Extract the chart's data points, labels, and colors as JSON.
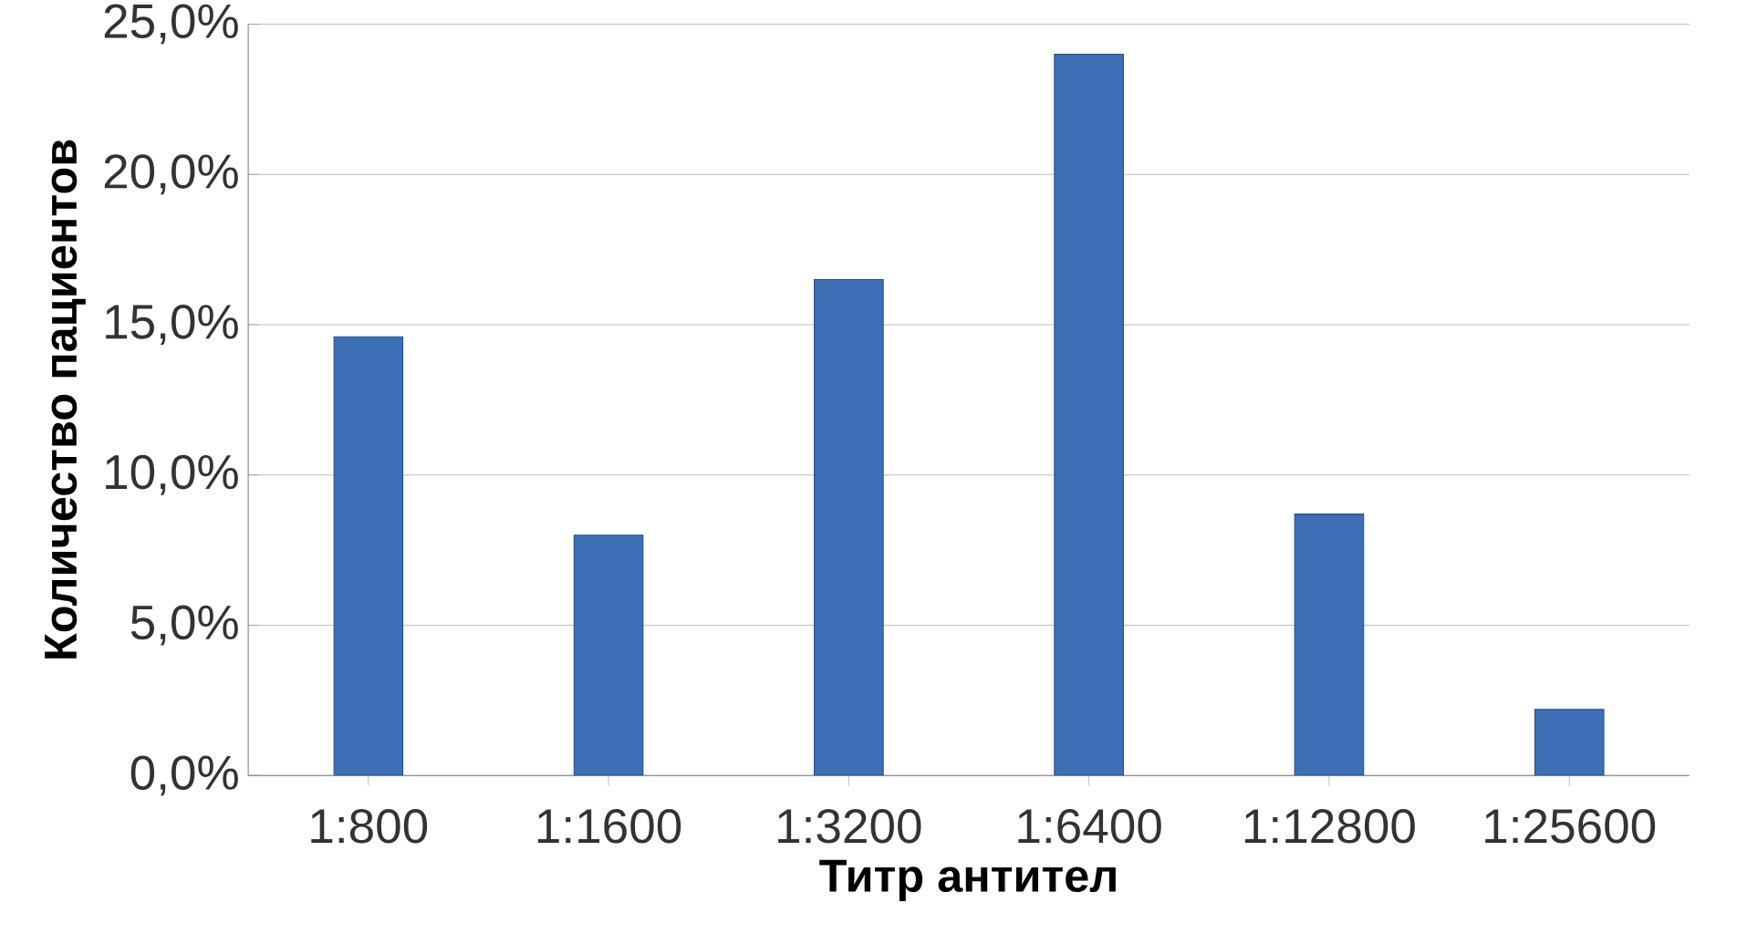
{
  "chart_data": {
    "type": "bar",
    "xlabel": "Титр антител",
    "ylabel": "Количество пациентов",
    "categories": [
      "1:800",
      "1:1600",
      "1:3200",
      "1:6400",
      "1:12800",
      "1:25600"
    ],
    "values": [
      14.6,
      8.0,
      16.5,
      24.0,
      8.7,
      2.2
    ],
    "color": "#3d6fb6",
    "ylim": [
      0,
      25
    ],
    "yticks": [
      {
        "value": 0,
        "label": "0,0%"
      },
      {
        "value": 5,
        "label": "5,0%"
      },
      {
        "value": 10,
        "label": "10,0%"
      },
      {
        "value": 15,
        "label": "15,0%"
      },
      {
        "value": 20,
        "label": "20,0%"
      },
      {
        "value": 25,
        "label": "25,0%"
      }
    ],
    "grid": "y"
  }
}
